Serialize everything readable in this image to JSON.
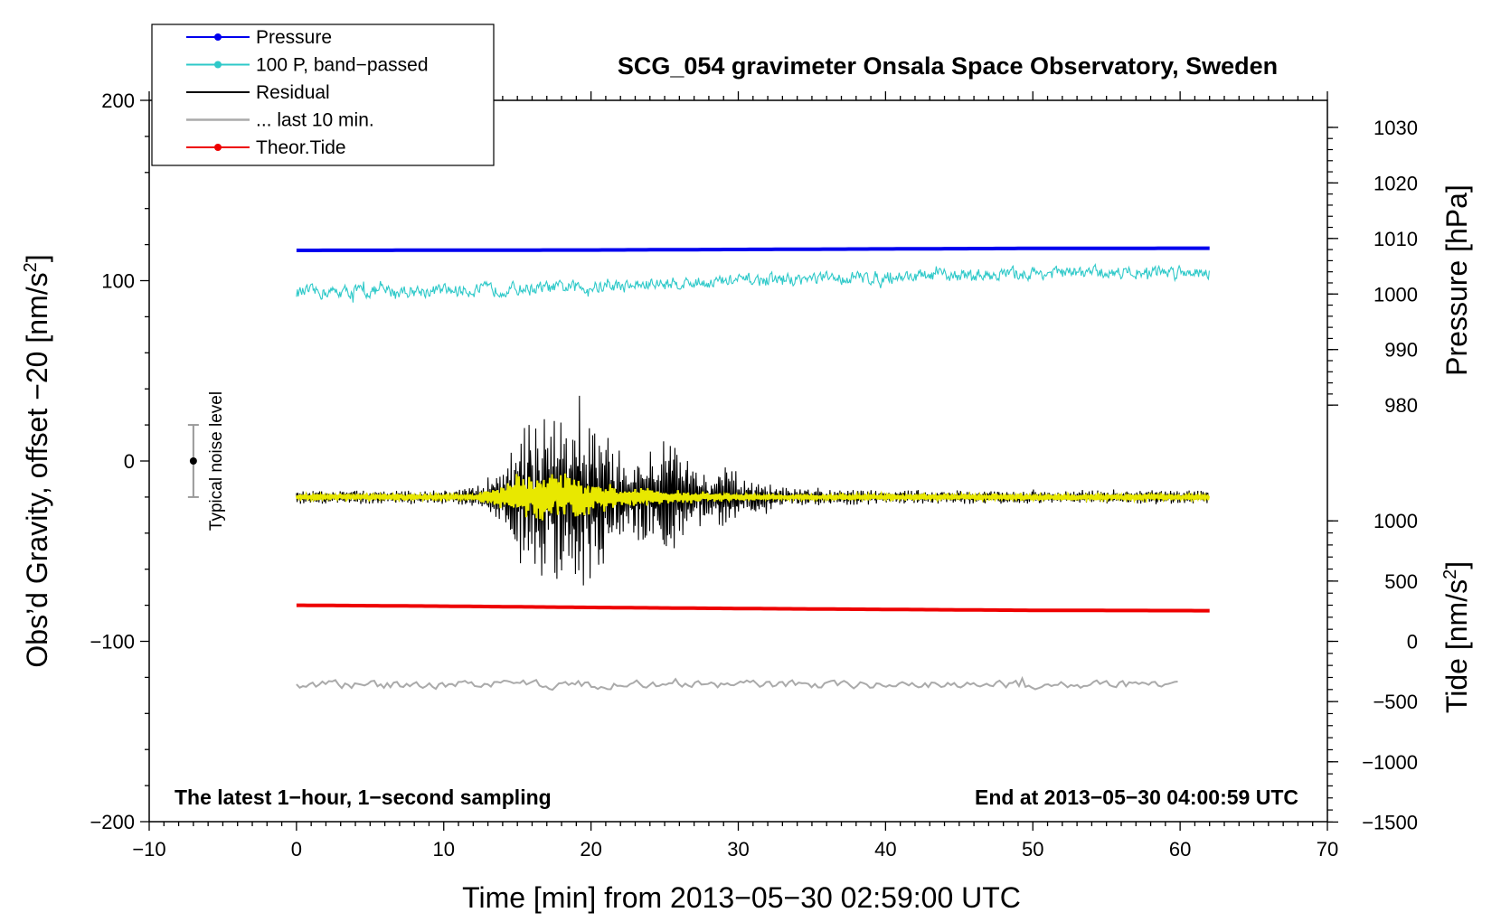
{
  "chart_data": {
    "type": "line",
    "title": "SCG_054 gravimeter Onsala Space Observatory, Sweden",
    "xlabel": "Time [min] from 2013−05−30 02:59:00 UTC",
    "ylabel_left": "Obs’d Gravity, offset −20 [nm/s",
    "ylabel_left_sup": "2",
    "ylabel_left_end": "]",
    "ylabel_right_pressure": "Pressure [hPa]",
    "ylabel_right_tide": "Tide [nm/s",
    "ylabel_right_tide_sup": "2",
    "ylabel_right_tide_end": "]",
    "xlim": [
      -10,
      70
    ],
    "ylim_left": [
      -200,
      200
    ],
    "x_ticks": [
      {
        "v": -10,
        "label": "−10"
      },
      {
        "v": 0,
        "label": "0"
      },
      {
        "v": 10,
        "label": "10"
      },
      {
        "v": 20,
        "label": "20"
      },
      {
        "v": 30,
        "label": "30"
      },
      {
        "v": 40,
        "label": "40"
      },
      {
        "v": 50,
        "label": "50"
      },
      {
        "v": 60,
        "label": "60"
      },
      {
        "v": 70,
        "label": "70"
      }
    ],
    "y_ticks_left": [
      {
        "v": 200,
        "label": "200"
      },
      {
        "v": 100,
        "label": "100"
      },
      {
        "v": 0,
        "label": "0"
      },
      {
        "v": -100,
        "label": "−100"
      },
      {
        "v": -200,
        "label": "−200"
      }
    ],
    "pressure_axis": {
      "ticks": [
        {
          "v": 1030,
          "label": "1030"
        },
        {
          "v": 1020,
          "label": "1020"
        },
        {
          "v": 1010,
          "label": "1010"
        },
        {
          "v": 1000,
          "label": "1000"
        },
        {
          "v": 990,
          "label": "990"
        },
        {
          "v": 980,
          "label": "980"
        }
      ],
      "map_anchor_value": 1010,
      "map_anchor_gravity": 123.4,
      "gravity_per_unit": 3.08
    },
    "tide_axis": {
      "ticks": [
        {
          "v": 1000,
          "label": "1000"
        },
        {
          "v": 500,
          "label": "500"
        },
        {
          "v": 0,
          "label": "0"
        },
        {
          "v": -500,
          "label": "−500"
        },
        {
          "v": -1000,
          "label": "−1000"
        },
        {
          "v": -1500,
          "label": "−1500"
        }
      ],
      "map_anchor_value": 0,
      "map_anchor_gravity": -100,
      "gravity_per_unit": 0.0668
    },
    "series": [
      {
        "name": "Pressure",
        "color": "#0000ee",
        "style": "thick-line",
        "x": [
          0,
          10,
          20,
          30,
          40,
          50,
          62
        ],
        "y": [
          116.8,
          116.9,
          117.0,
          117.3,
          117.6,
          117.9,
          118.0
        ]
      },
      {
        "name": "100 P, band−passed",
        "color": "#2ec9c9",
        "style": "noisy",
        "x": [
          0,
          10,
          20,
          30,
          40,
          50,
          62
        ],
        "y": [
          93.5,
          94.5,
          96.5,
          100.0,
          102.0,
          104.0,
          105.5
        ],
        "noise_amplitude": 5.5
      },
      {
        "name": "Residual",
        "color": "#000000",
        "style": "seismic",
        "baseline": -20,
        "x_start": 0,
        "x_end": 62,
        "envelope": [
          [
            0,
            4
          ],
          [
            11,
            4
          ],
          [
            12.5,
            8
          ],
          [
            14,
            18
          ],
          [
            15,
            38
          ],
          [
            16.5,
            45
          ],
          [
            18,
            46
          ],
          [
            19.5,
            50
          ],
          [
            20.5,
            48
          ],
          [
            21.5,
            32
          ],
          [
            22.5,
            22
          ],
          [
            24,
            27
          ],
          [
            25,
            32
          ],
          [
            26,
            30
          ],
          [
            27,
            22
          ],
          [
            28,
            10
          ],
          [
            29,
            18
          ],
          [
            31,
            10
          ],
          [
            33,
            6
          ],
          [
            40,
            4
          ],
          [
            62,
            4
          ]
        ]
      },
      {
        "name": "Residual (band)",
        "color": "#e8e800",
        "style": "seismic-band",
        "baseline": -20,
        "x_start": 0,
        "x_end": 62,
        "envelope": [
          [
            0,
            2
          ],
          [
            12,
            2
          ],
          [
            14,
            8
          ],
          [
            15,
            14
          ],
          [
            18,
            14
          ],
          [
            20,
            11
          ],
          [
            22,
            6
          ],
          [
            26,
            4
          ],
          [
            30,
            2
          ],
          [
            62,
            2
          ]
        ]
      },
      {
        "name": "... last 10 min.",
        "color": "#aaaaaa",
        "style": "noisy",
        "x": [
          0,
          60
        ],
        "y": [
          -124,
          -124
        ],
        "noise_amplitude": 3.5
      },
      {
        "name": "Theor.Tide",
        "color": "#ee0000",
        "style": "thick-line",
        "x": [
          0,
          10,
          20,
          30,
          40,
          50,
          62
        ],
        "y": [
          -80.0,
          -80.5,
          -81.2,
          -81.8,
          -82.3,
          -82.8,
          -83.0
        ]
      }
    ],
    "noise_bar": {
      "label": "Typical noise level",
      "x": -7,
      "center": 0,
      "low": -20,
      "high": 20
    },
    "annotations": {
      "left_bottom": "The latest 1−hour, 1−second sampling",
      "right_bottom": "End at 2013−05−30 04:00:59 UTC"
    },
    "legend": [
      {
        "label": "Pressure",
        "color": "#0000ee",
        "marker": true
      },
      {
        "label": "100 P, band−passed",
        "color": "#2ec9c9",
        "marker": true
      },
      {
        "label": "Residual",
        "color": "#000000",
        "marker": false
      },
      {
        "label": "... last 10 min.",
        "color": "#aaaaaa",
        "marker": false
      },
      {
        "label": "Theor.Tide",
        "color": "#ee0000",
        "marker": true
      }
    ]
  }
}
